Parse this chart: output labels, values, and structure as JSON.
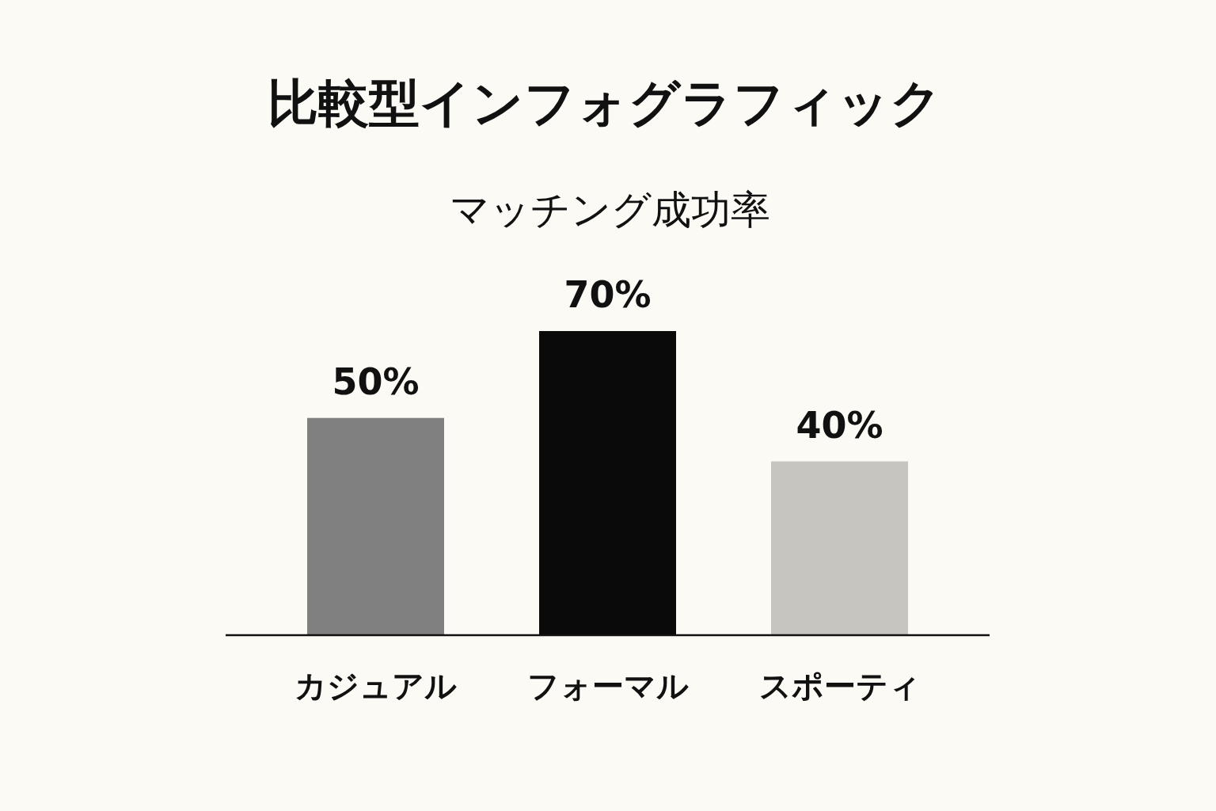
{
  "chart_data": {
    "type": "bar",
    "title": "比較型インフォグラフィック",
    "subtitle": "マッチング成功率",
    "categories": [
      "カジュアル",
      "フォーマル",
      "スポーティ"
    ],
    "values": [
      50,
      70,
      40
    ],
    "colors": [
      "#808080",
      "#0a0a0a",
      "#c6c5c0"
    ],
    "value_labels": [
      "50%",
      "70%",
      "40%"
    ]
  }
}
